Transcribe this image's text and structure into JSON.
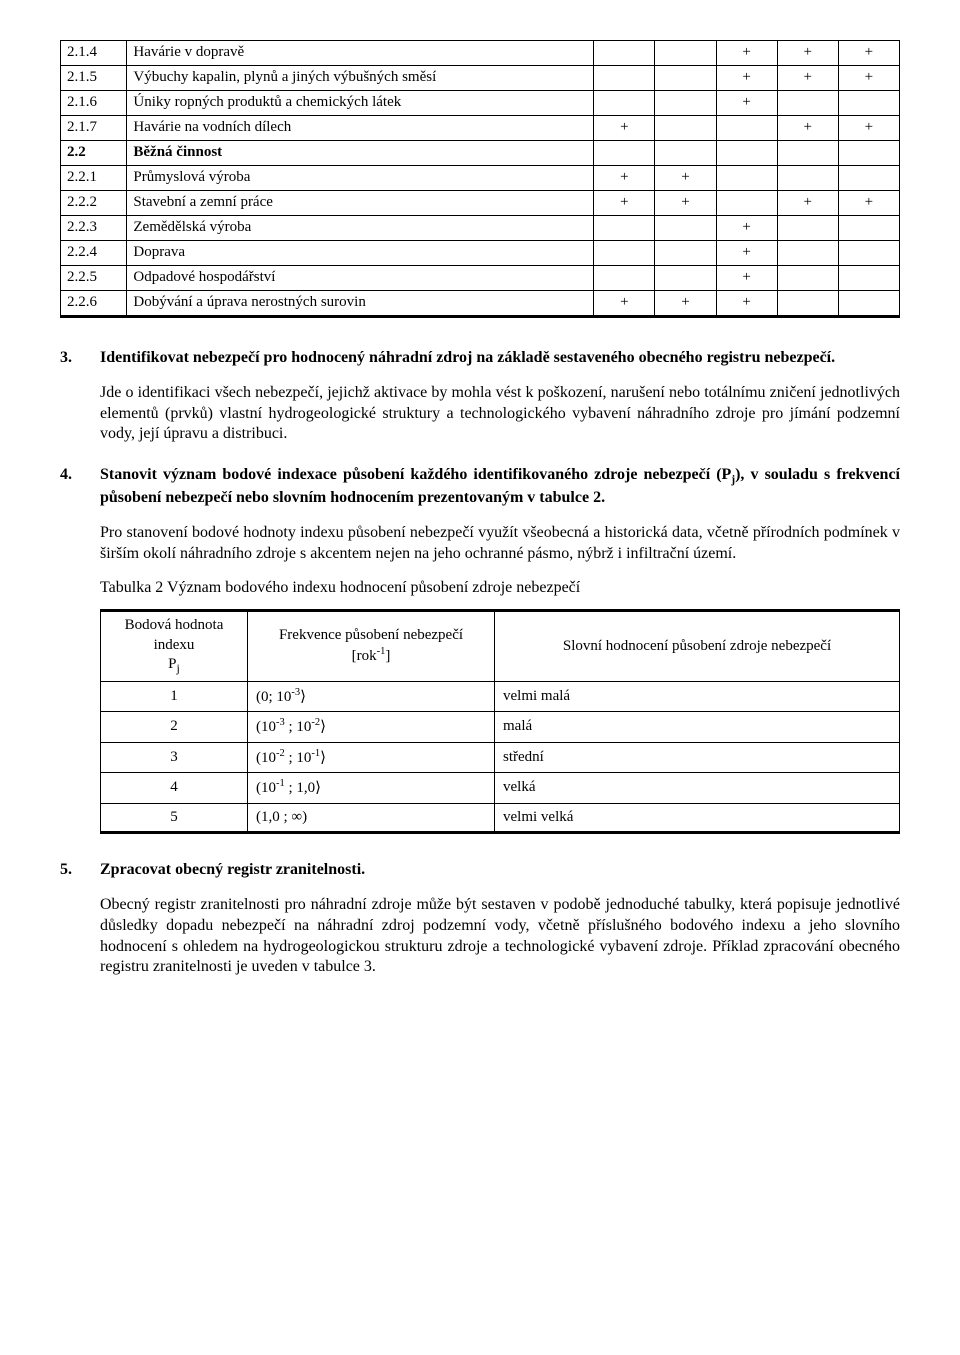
{
  "hazard_table": {
    "rows": [
      {
        "num": "2.1.4",
        "label": "Havárie v dopravě",
        "marks": [
          "",
          "",
          "+",
          "+",
          "+"
        ]
      },
      {
        "num": "2.1.5",
        "label": "Výbuchy kapalin, plynů a jiných výbušných směsí",
        "marks": [
          "",
          "",
          "+",
          "+",
          "+"
        ]
      },
      {
        "num": "2.1.6",
        "label": "Úniky ropných produktů a chemických látek",
        "marks": [
          "",
          "",
          "+",
          "",
          ""
        ]
      },
      {
        "num": "2.1.7",
        "label": "Havárie na vodních dílech",
        "marks": [
          "+",
          "",
          "",
          "+",
          "+"
        ]
      },
      {
        "num": "2.2",
        "label": "Běžná činnost",
        "marks": [
          "",
          "",
          "",
          "",
          ""
        ],
        "bold": true
      },
      {
        "num": "2.2.1",
        "label": "Průmyslová výroba",
        "marks": [
          "+",
          "+",
          "",
          "",
          ""
        ]
      },
      {
        "num": "2.2.2",
        "label": "Stavební a zemní práce",
        "marks": [
          "+",
          "+",
          "",
          "+",
          "+"
        ]
      },
      {
        "num": "2.2.3",
        "label": "Zemědělská výroba",
        "marks": [
          "",
          "",
          "+",
          "",
          ""
        ]
      },
      {
        "num": "2.2.4",
        "label": "Doprava",
        "marks": [
          "",
          "",
          "+",
          "",
          ""
        ]
      },
      {
        "num": "2.2.5",
        "label": "Odpadové hospodářství",
        "marks": [
          "",
          "",
          "+",
          "",
          ""
        ]
      },
      {
        "num": "2.2.6",
        "label": "Dobývání a úprava nerostných surovin",
        "marks": [
          "+",
          "+",
          "+",
          "",
          ""
        ],
        "last": true
      }
    ]
  },
  "section3": {
    "no": "3.",
    "title": "Identifikovat nebezpečí pro hodnocený náhradní zdroj na základě sestaveného obecného registru nebezpečí.",
    "para": "Jde o identifikaci všech nebezpečí, jejichž aktivace by mohla vést k poškození, narušení nebo totálnímu zničení jednotlivých elementů (prvků) vlastní hydrogeologické struktury a technologického vybavení náhradního zdroje pro jímání podzemní vody, její úpravu a distribuci."
  },
  "section4": {
    "no": "4.",
    "title_html": "Stanovit význam bodové indexace působení každého identifikovaného zdroje nebezpečí (P<sub>j</sub>), v souladu s frekvencí působení nebezpečí nebo slovním hodnocením prezentovaným v tabulce 2.",
    "para1": "Pro stanovení bodové hodnoty indexu působení nebezpečí využít všeobecná a historická data, včetně přírodních podmínek v širším okolí náhradního zdroje s akcentem nejen na jeho ochranné pásmo, nýbrž i infiltrační území.",
    "caption": "Tabulka 2 Význam bodového indexu hodnocení působení zdroje nebezpečí"
  },
  "index_table": {
    "head": {
      "c1_html": "Bodová hodnota<br>indexu<br>P<span class=\"subp\">j</span>",
      "c2_html": "Frekvence působení nebezpečí<br>[rok<sup>-1</sup>]",
      "c3": "Slovní hodnocení působení zdroje nebezpečí"
    },
    "rows": [
      {
        "v": "1",
        "f_html": "(0; 10<sup>-3</sup>⟩",
        "s": "velmi malá"
      },
      {
        "v": "2",
        "f_html": "(10<sup>-3</sup> ; 10<sup>-2</sup>⟩",
        "s": "malá"
      },
      {
        "v": "3",
        "f_html": "(10<sup>-2</sup> ; 10<sup>-1</sup>⟩",
        "s": "střední"
      },
      {
        "v": "4",
        "f_html": "(10<sup>-1</sup> ; 1,0⟩",
        "s": "velká"
      },
      {
        "v": "5",
        "f_html": "(1,0 ; ∞)",
        "s": "velmi velká",
        "last": true
      }
    ]
  },
  "section5": {
    "no": "5.",
    "title": "Zpracovat obecný registr zranitelnosti.",
    "para": "Obecný registr zranitelnosti pro náhradní zdroje může být sestaven v podobě jednoduché tabulky, která popisuje jednotlivé důsledky dopadu nebezpečí na náhradní zdroj podzemní vody, včetně příslušného bodového indexu a jeho slovního hodnocení s ohledem na hydrogeologickou strukturu zdroje a technologické vybavení zdroje. Příklad zpracování obecného registru zranitelnosti je uveden v tabulce 3."
  }
}
